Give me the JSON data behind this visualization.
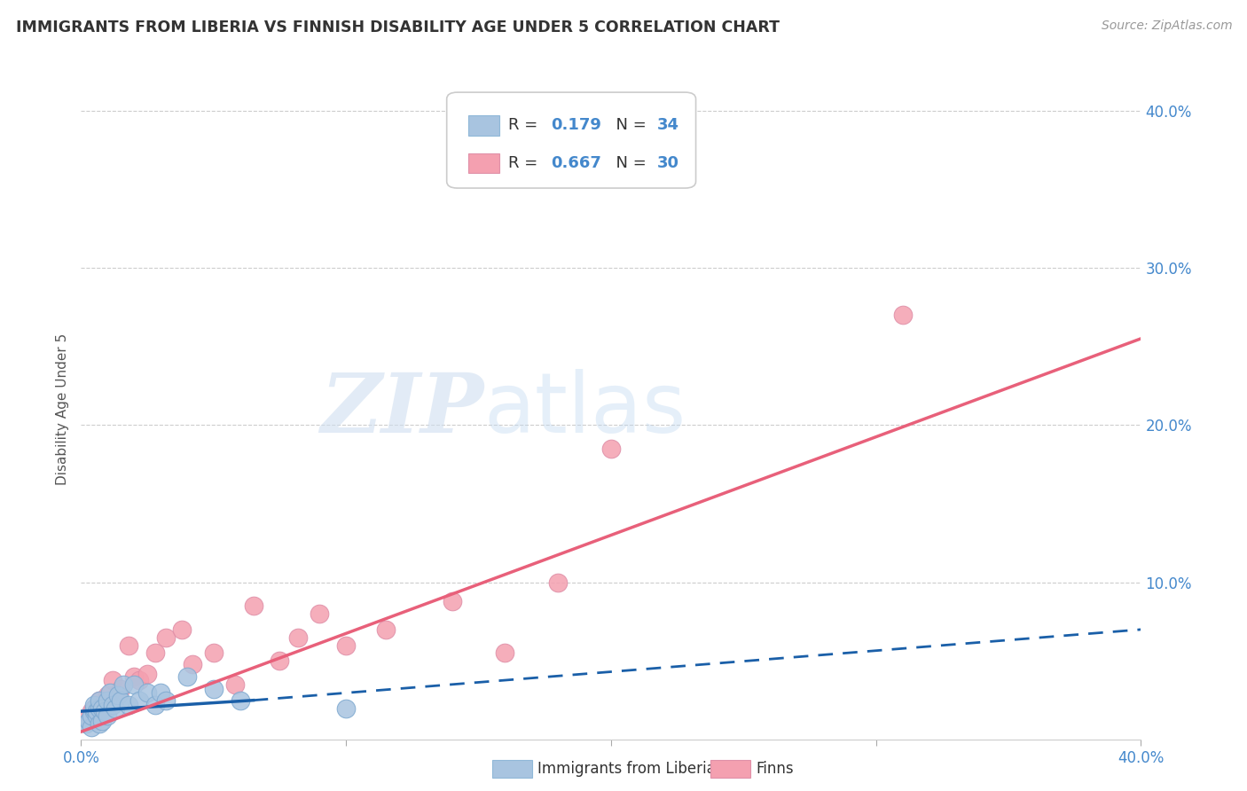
{
  "title": "IMMIGRANTS FROM LIBERIA VS FINNISH DISABILITY AGE UNDER 5 CORRELATION CHART",
  "source": "Source: ZipAtlas.com",
  "ylabel": "Disability Age Under 5",
  "xlim": [
    0.0,
    0.4
  ],
  "ylim": [
    0.0,
    0.42
  ],
  "yticks": [
    0.1,
    0.2,
    0.3,
    0.4
  ],
  "ytick_labels": [
    "10.0%",
    "20.0%",
    "30.0%",
    "40.0%"
  ],
  "xticks": [
    0.0,
    0.1,
    0.2,
    0.3,
    0.4
  ],
  "xtick_labels": [
    "0.0%",
    "",
    "",
    "",
    "40.0%"
  ],
  "liberia_color": "#a8c4e0",
  "finn_color": "#f4a0b0",
  "liberia_line_color": "#1a5fa8",
  "finn_line_color": "#e8607a",
  "background_color": "#ffffff",
  "grid_color": "#c8c8c8",
  "watermark_zip": "ZIP",
  "watermark_atlas": "atlas",
  "tick_color": "#4488cc",
  "liberia_points_x": [
    0.002,
    0.003,
    0.004,
    0.004,
    0.005,
    0.005,
    0.005,
    0.006,
    0.006,
    0.007,
    0.007,
    0.007,
    0.008,
    0.008,
    0.009,
    0.01,
    0.01,
    0.011,
    0.012,
    0.013,
    0.014,
    0.015,
    0.016,
    0.018,
    0.02,
    0.022,
    0.025,
    0.028,
    0.03,
    0.032,
    0.04,
    0.05,
    0.06,
    0.1
  ],
  "liberia_points_y": [
    0.01,
    0.012,
    0.008,
    0.015,
    0.018,
    0.02,
    0.022,
    0.015,
    0.018,
    0.02,
    0.025,
    0.01,
    0.012,
    0.02,
    0.018,
    0.025,
    0.015,
    0.03,
    0.022,
    0.02,
    0.028,
    0.025,
    0.035,
    0.022,
    0.035,
    0.025,
    0.03,
    0.022,
    0.03,
    0.025,
    0.04,
    0.032,
    0.025,
    0.02
  ],
  "finn_points_x": [
    0.003,
    0.004,
    0.005,
    0.006,
    0.007,
    0.008,
    0.01,
    0.012,
    0.015,
    0.018,
    0.02,
    0.022,
    0.025,
    0.028,
    0.032,
    0.038,
    0.042,
    0.05,
    0.058,
    0.065,
    0.075,
    0.082,
    0.09,
    0.1,
    0.115,
    0.14,
    0.16,
    0.18,
    0.2,
    0.31
  ],
  "finn_points_y": [
    0.015,
    0.018,
    0.02,
    0.012,
    0.025,
    0.022,
    0.028,
    0.038,
    0.032,
    0.06,
    0.04,
    0.038,
    0.042,
    0.055,
    0.065,
    0.07,
    0.048,
    0.055,
    0.035,
    0.085,
    0.05,
    0.065,
    0.08,
    0.06,
    0.07,
    0.088,
    0.055,
    0.1,
    0.185,
    0.27
  ],
  "liberia_line_x0": 0.0,
  "liberia_line_x_solid_end": 0.065,
  "liberia_line_x_dash_end": 0.4,
  "liberia_line_y0": 0.018,
  "liberia_line_y_solid_end": 0.025,
  "liberia_line_y_dash_end": 0.07,
  "finn_line_x0": 0.0,
  "finn_line_x_end": 0.4,
  "finn_line_y0": 0.005,
  "finn_line_y_end": 0.255
}
